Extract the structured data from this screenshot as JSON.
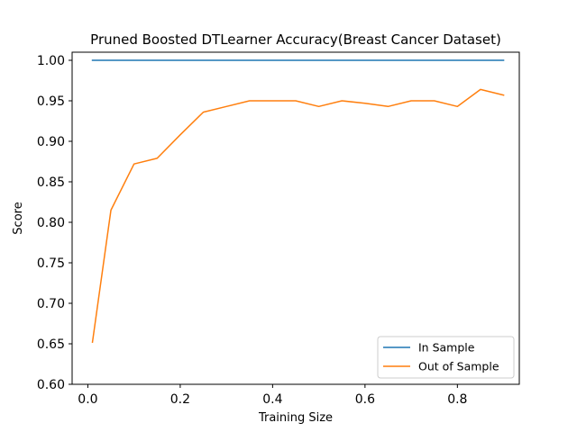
{
  "chart_data": {
    "type": "line",
    "title": "Pruned Boosted DTLearner Accuracy(Breast Cancer Dataset)",
    "xlabel": "Training Size",
    "ylabel": "Score",
    "xlim": [
      -0.034,
      0.934
    ],
    "ylim": [
      0.6,
      1.01
    ],
    "xticks": [
      0.0,
      0.2,
      0.4,
      0.6,
      0.8
    ],
    "xtick_labels": [
      "0.0",
      "0.2",
      "0.4",
      "0.6",
      "0.8"
    ],
    "yticks": [
      0.6,
      0.65,
      0.7,
      0.75,
      0.8,
      0.85,
      0.9,
      0.95,
      1.0
    ],
    "ytick_labels": [
      "0.60",
      "0.65",
      "0.70",
      "0.75",
      "0.80",
      "0.85",
      "0.90",
      "0.95",
      "1.00"
    ],
    "grid": false,
    "legend_position": "lower-right",
    "x": [
      0.01,
      0.05,
      0.1,
      0.15,
      0.2,
      0.25,
      0.3,
      0.35,
      0.4,
      0.45,
      0.5,
      0.55,
      0.6,
      0.65,
      0.7,
      0.75,
      0.8,
      0.85,
      0.9
    ],
    "series": [
      {
        "name": "In Sample",
        "color": "#1f77b4",
        "values": [
          1.0,
          1.0,
          1.0,
          1.0,
          1.0,
          1.0,
          1.0,
          1.0,
          1.0,
          1.0,
          1.0,
          1.0,
          1.0,
          1.0,
          1.0,
          1.0,
          1.0,
          1.0,
          1.0
        ]
      },
      {
        "name": "Out of Sample",
        "color": "#ff7f0e",
        "values": [
          0.652,
          0.815,
          0.872,
          0.879,
          0.908,
          0.936,
          0.943,
          0.95,
          0.95,
          0.95,
          0.943,
          0.95,
          0.947,
          0.943,
          0.95,
          0.95,
          0.943,
          0.964,
          0.957
        ]
      }
    ]
  }
}
